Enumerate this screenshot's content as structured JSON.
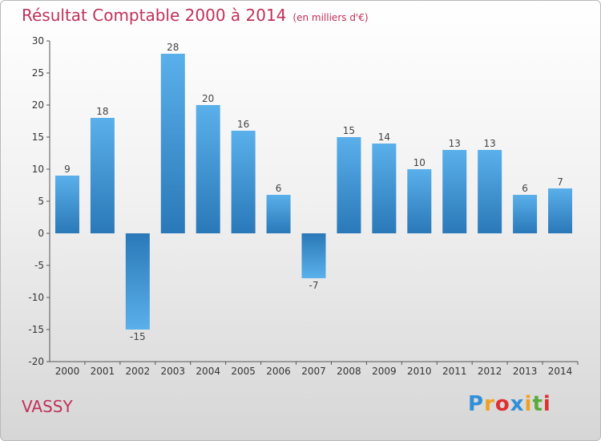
{
  "title": "Résultat Comptable 2000 à 2014",
  "unit_note": "(en milliers d'€)",
  "commune": "VASSY",
  "logo": {
    "letters": [
      "P",
      "r",
      "o",
      "x",
      "i",
      "t",
      "i"
    ],
    "colors": [
      "#2f8fd8",
      "#f0a020",
      "#e03030",
      "#2f8fd8",
      "#f0a020",
      "#5aaa3a",
      "#e03030"
    ]
  },
  "colors": {
    "title": "#c0305a",
    "bar_light": "#5ab0ea",
    "bar_dark": "#2a78b8"
  },
  "chart_data": {
    "type": "bar",
    "title": "Résultat Comptable 2000 à 2014",
    "categories": [
      "2000",
      "2001",
      "2002",
      "2003",
      "2004",
      "2005",
      "2006",
      "2007",
      "2008",
      "2009",
      "2010",
      "2011",
      "2012",
      "2013",
      "2014"
    ],
    "values": [
      9,
      18,
      -15,
      28,
      20,
      16,
      6,
      -7,
      15,
      14,
      10,
      13,
      13,
      6,
      7
    ],
    "ylim": [
      -20,
      30
    ],
    "yticks": [
      30,
      25,
      20,
      15,
      10,
      5,
      0,
      -5,
      -10,
      -15,
      -20
    ],
    "grid": false
  }
}
